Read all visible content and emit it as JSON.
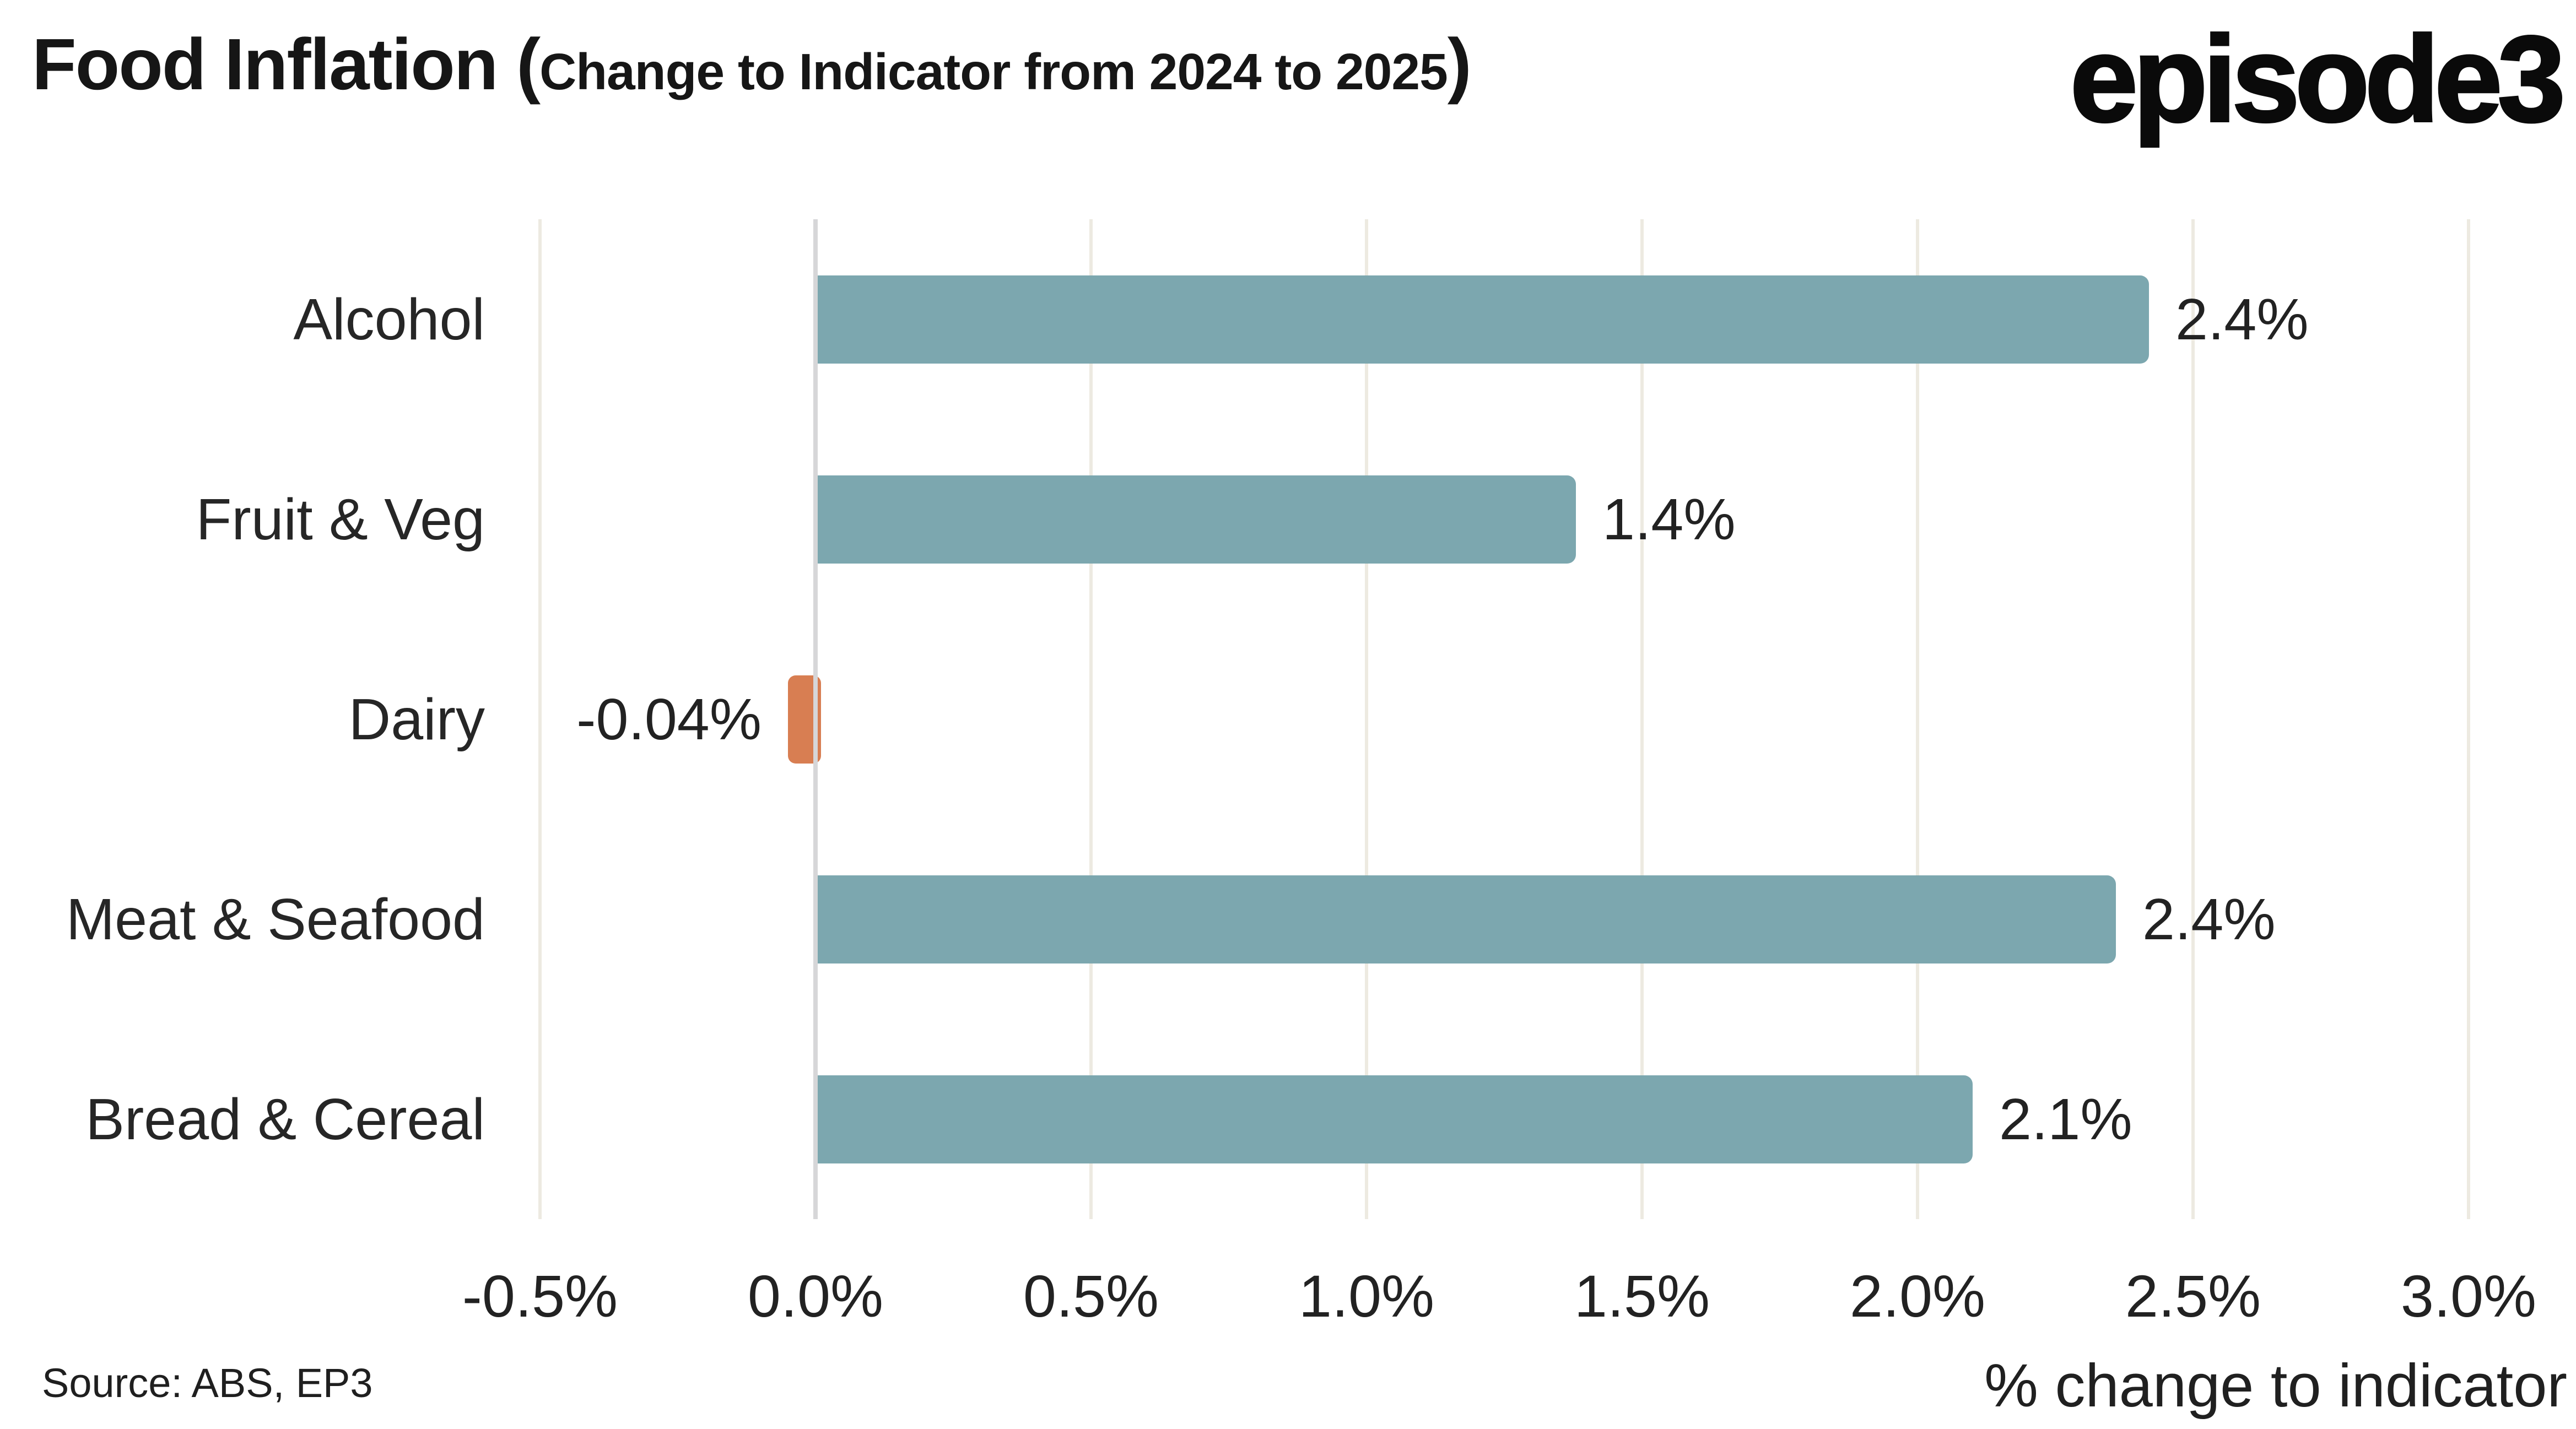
{
  "header": {
    "title_main": "Food Inflation (",
    "title_paren": "Change to Indicator from 2024 to 2025",
    "title_close": ")",
    "logo": "episode3"
  },
  "chart_data": {
    "type": "bar",
    "orientation": "horizontal",
    "title": "Food Inflation (Change to Indicator from 2024 to 2025)",
    "categories": [
      "Alcohol",
      "Fruit & Veg",
      "Dairy",
      "Meat & Seafood",
      "Bread & Cereal"
    ],
    "values": [
      2.42,
      1.38,
      -0.04,
      2.36,
      2.1
    ],
    "value_labels": [
      "2.4%",
      "1.4%",
      "-0.04%",
      "2.4%",
      "2.1%"
    ],
    "xlabel": "% change to indicator",
    "xlim": [
      -0.5,
      3.0
    ],
    "xticks": [
      -0.5,
      0,
      0.5,
      1,
      1.5,
      2,
      2.5,
      3
    ],
    "xtick_labels": [
      "-0.5%",
      "0.0%",
      "0.5%",
      "1.0%",
      "1.5%",
      "2.0%",
      "2.5%",
      "3.0%"
    ],
    "grid": "vertical",
    "legend": false,
    "colors": {
      "positive": "#7CA7AF",
      "negative": "#D87E52",
      "gridline": "#EDEAE1",
      "zero_line": "#D6D6D8",
      "text": "#222222"
    }
  },
  "footer": {
    "source": "Source: ABS, EP3"
  }
}
